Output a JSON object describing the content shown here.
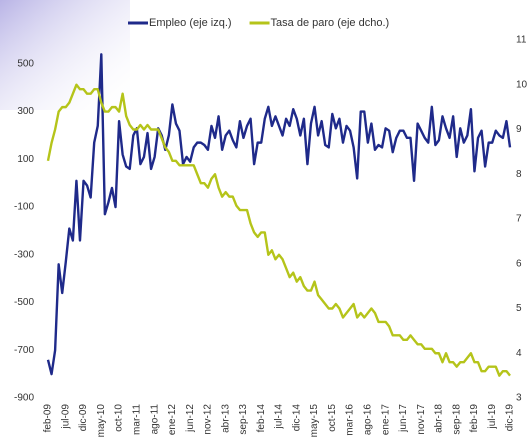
{
  "chart_data": {
    "type": "line",
    "categories": [
      "feb-09",
      null,
      null,
      null,
      null,
      "jul-09",
      null,
      null,
      null,
      null,
      "dic-09",
      null,
      null,
      null,
      null,
      "may-10",
      null,
      null,
      null,
      null,
      "oct-10",
      null,
      null,
      null,
      null,
      "mar-11",
      null,
      null,
      null,
      null,
      "ago-11",
      null,
      null,
      null,
      null,
      "ene-12",
      null,
      null,
      null,
      null,
      "jun-12",
      null,
      null,
      null,
      null,
      "nov-12",
      null,
      null,
      null,
      null,
      "abr-13",
      null,
      null,
      null,
      null,
      "sep-13",
      null,
      null,
      null,
      null,
      "feb-14",
      null,
      null,
      null,
      null,
      "jul-14",
      null,
      null,
      null,
      null,
      "dic-14",
      null,
      null,
      null,
      null,
      "may-15",
      null,
      null,
      null,
      null,
      "oct-15",
      null,
      null,
      null,
      null,
      "mar-16",
      null,
      null,
      null,
      null,
      "ago-16",
      null,
      null,
      null,
      null,
      "ene-17",
      null,
      null,
      null,
      null,
      "jun-17",
      null,
      null,
      null,
      null,
      "nov-17",
      null,
      null,
      null,
      null,
      "abr-18",
      null,
      null,
      null,
      null,
      "sep-18",
      null,
      null,
      null,
      null,
      "feb-19",
      null,
      null,
      null,
      null,
      "jul-19",
      null,
      null,
      null,
      null,
      "dic-19"
    ],
    "series": [
      {
        "name": "Empleo (eje izq.)",
        "color": "#1f2a8a",
        "axis": "y",
        "values": [
          -740,
          -800,
          -700,
          -340,
          -460,
          -330,
          -190,
          -240,
          10,
          -240,
          10,
          -10,
          -60,
          170,
          240,
          540,
          -130,
          -80,
          -20,
          -100,
          260,
          120,
          70,
          60,
          200,
          230,
          80,
          110,
          210,
          60,
          110,
          230,
          200,
          140,
          200,
          330,
          250,
          220,
          80,
          110,
          90,
          150,
          170,
          170,
          160,
          140,
          240,
          190,
          280,
          140,
          200,
          220,
          180,
          150,
          260,
          190,
          240,
          270,
          80,
          170,
          170,
          270,
          320,
          240,
          280,
          240,
          200,
          270,
          240,
          310,
          270,
          200,
          270,
          80,
          250,
          320,
          200,
          260,
          160,
          150,
          290,
          230,
          270,
          170,
          240,
          220,
          150,
          20,
          300,
          300,
          170,
          250,
          140,
          160,
          150,
          230,
          220,
          130,
          190,
          220,
          220,
          190,
          190,
          10,
          250,
          220,
          190,
          170,
          320,
          160,
          180,
          280,
          230,
          190,
          280,
          110,
          230,
          170,
          200,
          310,
          50,
          190,
          220,
          70,
          170,
          170,
          220,
          200,
          190,
          260,
          150
        ]
      },
      {
        "name": "Tasa de paro (eje dcho.)",
        "color": "#b5c41a",
        "axis": "y2",
        "values": [
          8.3,
          8.7,
          9.0,
          9.4,
          9.5,
          9.5,
          9.6,
          9.8,
          10.0,
          9.9,
          9.9,
          9.8,
          9.8,
          9.9,
          9.9,
          9.6,
          9.4,
          9.4,
          9.5,
          9.5,
          9.4,
          9.8,
          9.3,
          9.1,
          9.0,
          9.0,
          9.1,
          9.0,
          9.1,
          9.0,
          9.0,
          9.0,
          8.8,
          8.6,
          8.5,
          8.3,
          8.3,
          8.2,
          8.2,
          8.2,
          8.2,
          8.2,
          8.0,
          7.8,
          7.8,
          7.7,
          7.9,
          8.0,
          7.7,
          7.5,
          7.6,
          7.5,
          7.5,
          7.3,
          7.2,
          7.2,
          7.2,
          6.9,
          6.7,
          6.6,
          6.7,
          6.7,
          6.2,
          6.3,
          6.1,
          6.2,
          6.1,
          5.9,
          5.7,
          5.8,
          5.6,
          5.7,
          5.5,
          5.4,
          5.4,
          5.6,
          5.3,
          5.2,
          5.1,
          5.0,
          5.0,
          5.1,
          5.0,
          4.8,
          4.9,
          5.0,
          5.1,
          4.8,
          4.9,
          4.8,
          4.9,
          5.0,
          4.9,
          4.7,
          4.7,
          4.7,
          4.6,
          4.4,
          4.4,
          4.4,
          4.3,
          4.3,
          4.4,
          4.3,
          4.2,
          4.2,
          4.1,
          4.1,
          4.1,
          4.0,
          4.0,
          3.8,
          4.0,
          3.8,
          3.8,
          3.7,
          3.8,
          3.8,
          3.9,
          4.0,
          3.8,
          3.8,
          3.6,
          3.6,
          3.7,
          3.7,
          3.7,
          3.5,
          3.6,
          3.6,
          3.5
        ]
      }
    ],
    "ylim": [
      -900,
      600
    ],
    "yticks": [
      -900,
      -700,
      -500,
      -300,
      -100,
      100,
      300,
      500
    ],
    "y2lim": [
      3,
      11
    ],
    "y2ticks": [
      3,
      4,
      5,
      6,
      7,
      8,
      9,
      10,
      11
    ],
    "legend": "top"
  }
}
